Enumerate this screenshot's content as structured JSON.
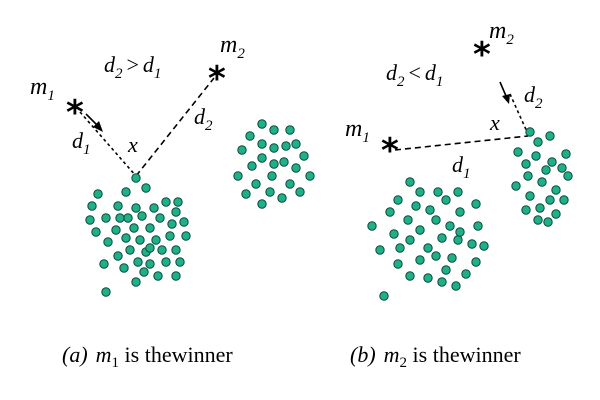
{
  "panel_a": {
    "condition": {
      "lhs": "d",
      "lhs_sub": "2",
      "op": ">",
      "rhs": "d",
      "rhs_sub": "1"
    },
    "m1": {
      "base": "m",
      "sub": "1"
    },
    "m2": {
      "base": "m",
      "sub": "2"
    },
    "d1": {
      "base": "d",
      "sub": "1"
    },
    "d2": {
      "base": "d",
      "sub": "2"
    },
    "x": "x",
    "caption": {
      "letter": "(a)",
      "m": "m",
      "sub": "1",
      "text": " is thewinner"
    }
  },
  "panel_b": {
    "condition": {
      "lhs": "d",
      "lhs_sub": "2",
      "op": "<",
      "rhs": "d",
      "rhs_sub": "1"
    },
    "m1": {
      "base": "m",
      "sub": "1"
    },
    "m2": {
      "base": "m",
      "sub": "2"
    },
    "d1": {
      "base": "d",
      "sub": "1"
    },
    "d2": {
      "base": "d",
      "sub": "2"
    },
    "x": "x",
    "caption": {
      "letter": "(b)",
      "m": "m",
      "sub": "2",
      "text": " is thewinner"
    }
  },
  "colors": {
    "point_fill": "#1fb08a",
    "point_stroke": "#0b4a3a",
    "line": "#000000"
  },
  "markers": {
    "center": "*"
  }
}
